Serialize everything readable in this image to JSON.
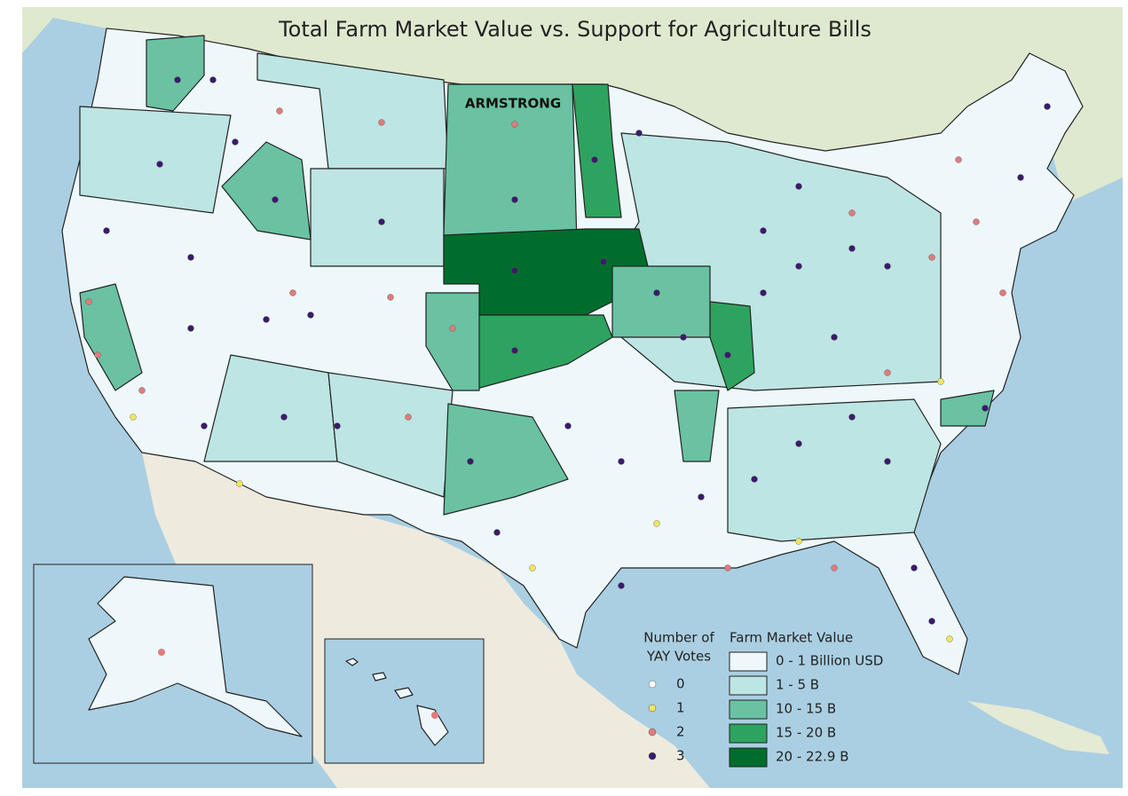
{
  "title": "Total Farm Market Value vs. Support for Agriculture Bills",
  "map_labels": [
    "ARMSTRONG"
  ],
  "legend_votes": {
    "title_lines": [
      "Number of",
      "YAY Votes"
    ],
    "items": [
      0,
      1,
      2,
      3
    ],
    "colors": [
      "#ffffff",
      "#f3e55d",
      "#e07b7b",
      "#3b1a6b"
    ]
  },
  "legend_value": {
    "title": "Farm Market Value",
    "items": [
      "0 - 1 Billion USD",
      "1 - 5 B",
      "10 - 15 B",
      "15 - 20 B",
      "20 - 22.9 B"
    ],
    "colors": [
      "#eef8fb",
      "#bde5e3",
      "#6ac2a2",
      "#2ea35f",
      "#016d2c"
    ]
  }
}
